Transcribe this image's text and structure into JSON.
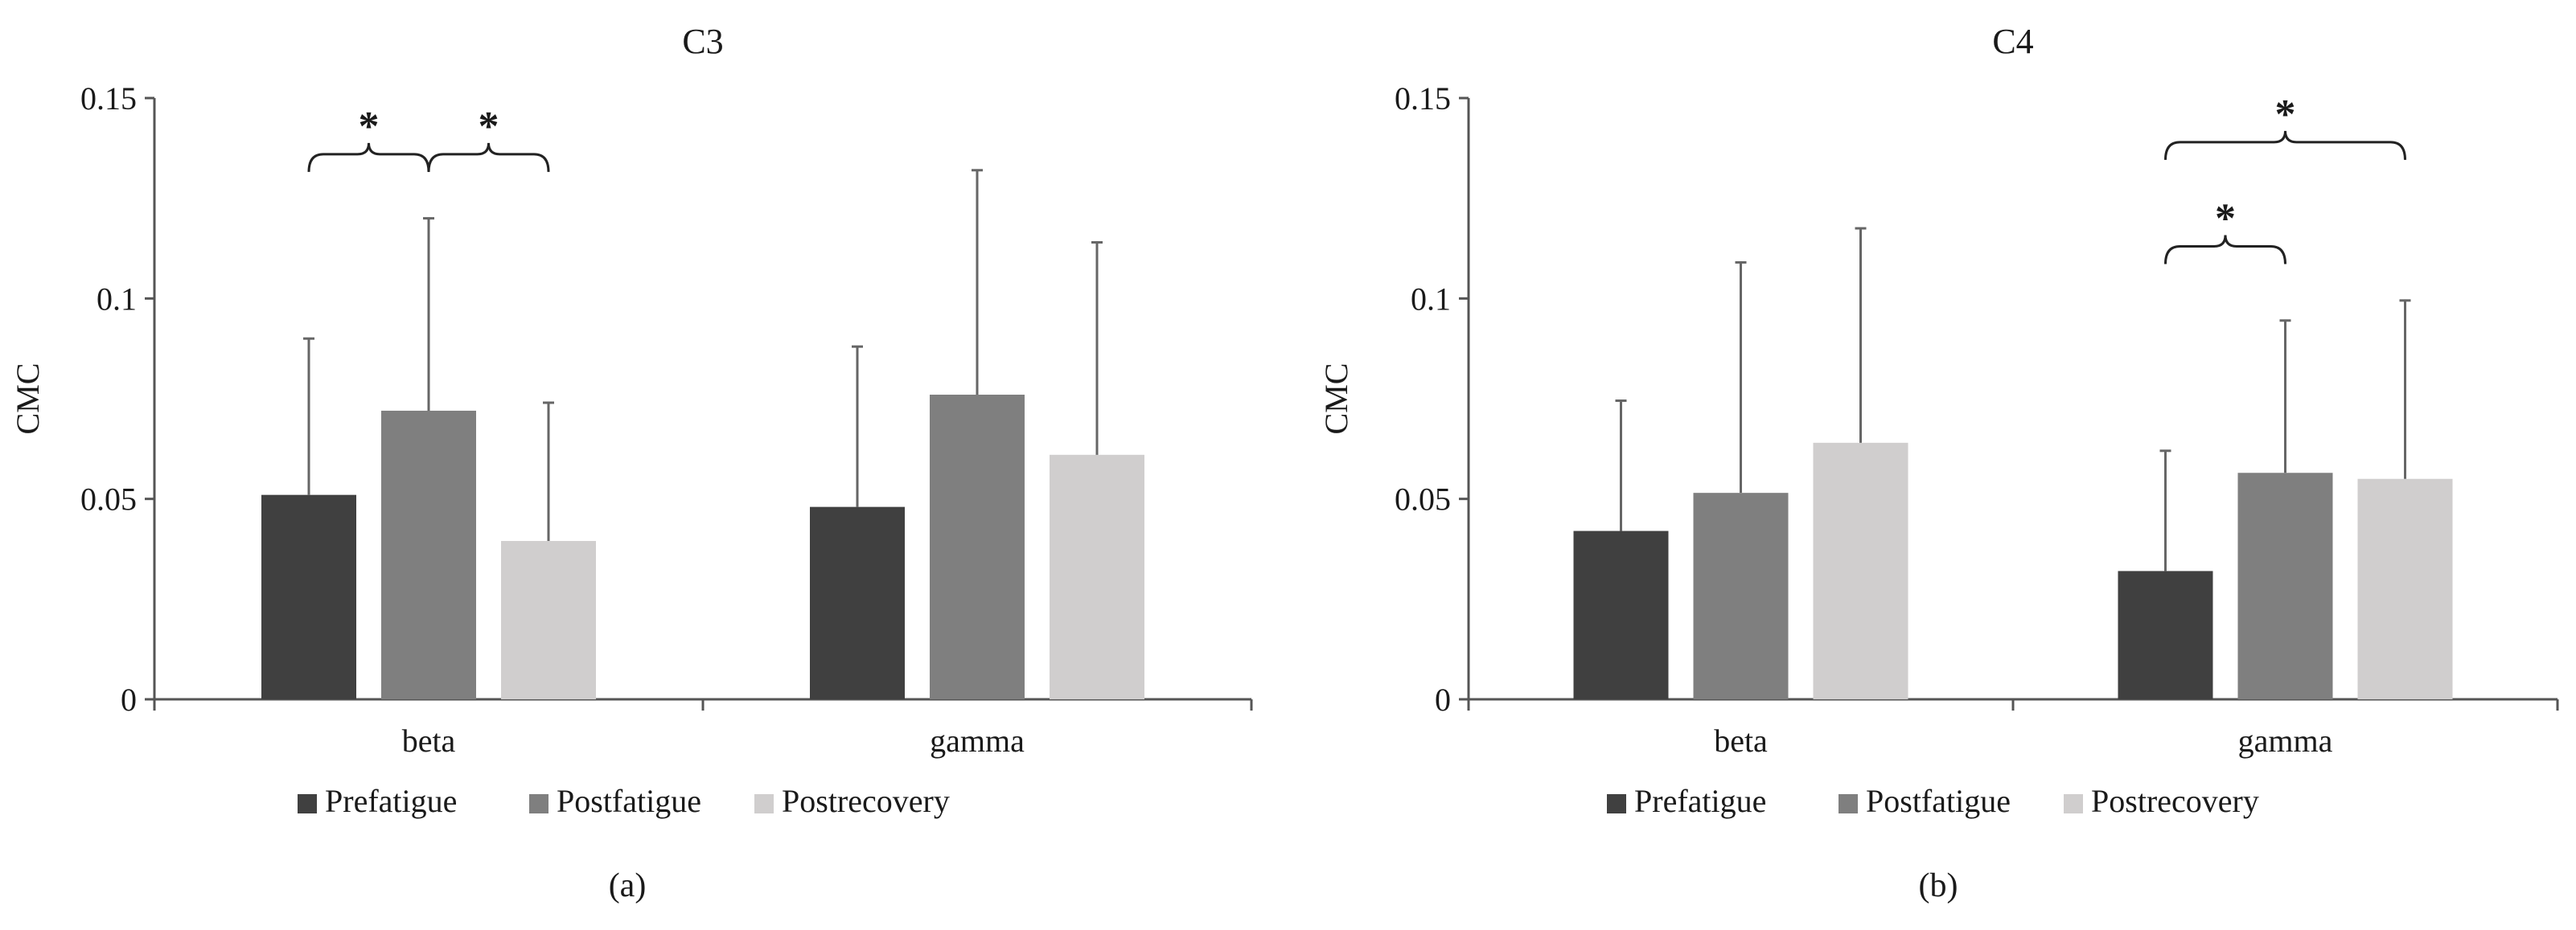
{
  "colors": {
    "axis": "#555555",
    "text": "#1a1a1a",
    "errorbar": "#666666"
  },
  "chart_data": [
    {
      "type": "bar",
      "title": "C3",
      "panel_label": "(a)",
      "ylabel": "CMC",
      "ylim": [
        0,
        0.15
      ],
      "yticks": [
        0,
        0.05,
        0.1,
        0.15
      ],
      "ytick_labels": [
        "0",
        "0.05",
        "0.1",
        "0.15"
      ],
      "categories": [
        "beta",
        "gamma"
      ],
      "series": [
        {
          "name": "Prefatigue",
          "color": "#404040",
          "values": [
            0.051,
            0.048
          ],
          "errors": [
            0.039,
            0.04
          ]
        },
        {
          "name": "Postfatigue",
          "color": "#7f7f7f",
          "values": [
            0.072,
            0.076
          ],
          "errors": [
            0.048,
            0.056
          ]
        },
        {
          "name": "Postrecovery",
          "color": "#d0cece",
          "values": [
            0.0395,
            0.061
          ],
          "errors": [
            0.0345,
            0.053
          ]
        }
      ],
      "significance": [
        {
          "category": 0,
          "from": 0,
          "to": 1,
          "level": 0.136,
          "label": "*"
        },
        {
          "category": 0,
          "from": 1,
          "to": 2,
          "level": 0.136,
          "label": "*"
        }
      ],
      "legend_position": "bottom"
    },
    {
      "type": "bar",
      "title": "C4",
      "panel_label": "(b)",
      "ylabel": "CMC",
      "ylim": [
        0,
        0.15
      ],
      "yticks": [
        0,
        0.05,
        0.1,
        0.15
      ],
      "ytick_labels": [
        "0",
        "0.05",
        "0.1",
        "0.15"
      ],
      "categories": [
        "beta",
        "gamma"
      ],
      "series": [
        {
          "name": "Prefatigue",
          "color": "#404040",
          "values": [
            0.042,
            0.032
          ],
          "errors": [
            0.0325,
            0.03
          ]
        },
        {
          "name": "Postfatigue",
          "color": "#7f7f7f",
          "values": [
            0.0515,
            0.0565
          ],
          "errors": [
            0.0575,
            0.038
          ]
        },
        {
          "name": "Postrecovery",
          "color": "#d0cece",
          "values": [
            0.064,
            0.055
          ],
          "errors": [
            0.0535,
            0.0445
          ]
        }
      ],
      "significance": [
        {
          "category": 1,
          "from": 0,
          "to": 1,
          "level": 0.113,
          "label": "*"
        },
        {
          "category": 1,
          "from": 0,
          "to": 2,
          "level": 0.139,
          "label": "*"
        }
      ],
      "legend_position": "bottom"
    }
  ]
}
